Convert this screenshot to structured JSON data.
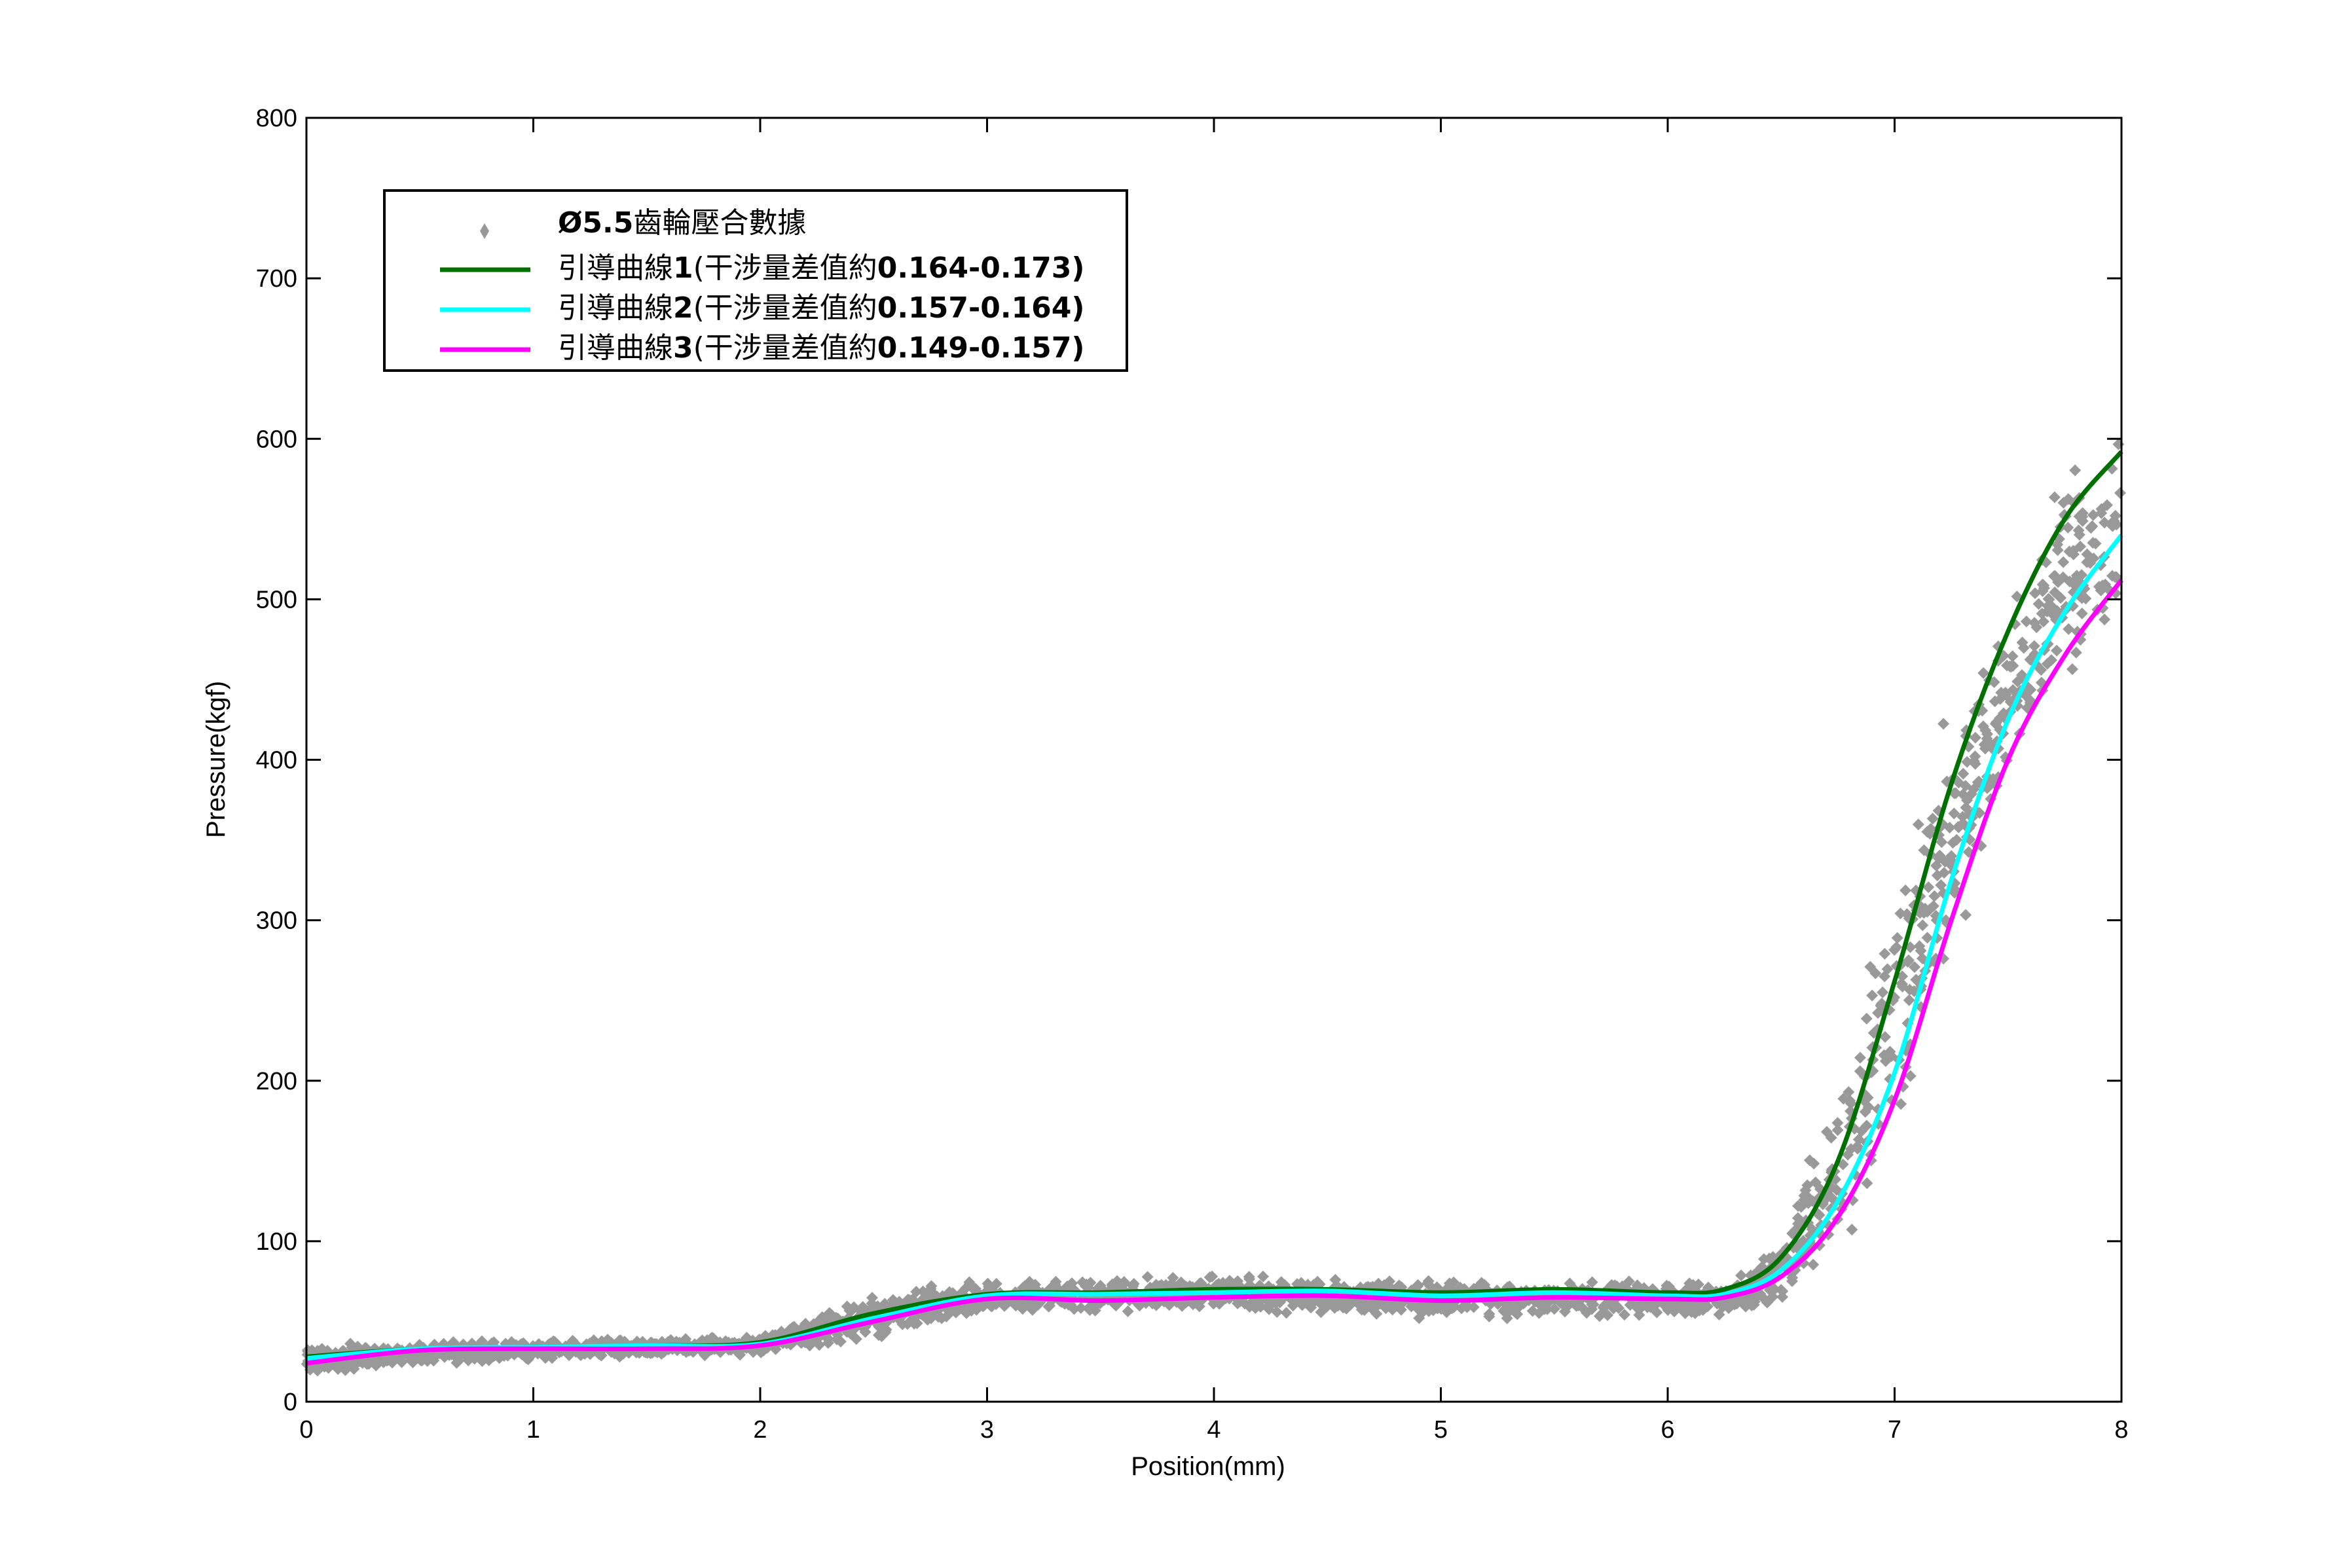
{
  "chart_data": {
    "type": "scatter",
    "xlabel": "Position(mm)",
    "ylabel": "Pressure(kgf)",
    "xlim": [
      0,
      8
    ],
    "ylim": [
      0,
      800
    ],
    "xticks": [
      "0",
      "1",
      "2",
      "3",
      "4",
      "5",
      "6",
      "7",
      "8"
    ],
    "yticks": [
      "0",
      "100",
      "200",
      "300",
      "400",
      "500",
      "600",
      "700",
      "800"
    ],
    "grid": false,
    "legend_position": "top-left",
    "scatter": {
      "name_bold": "Ø5.5",
      "name_rest": "齒輪壓合數據",
      "color": "#999999",
      "band": {
        "x": [
          0,
          1,
          2,
          2.5,
          3,
          4,
          5,
          6,
          6.3,
          6.5,
          6.75,
          7,
          7.25,
          7.5,
          7.75,
          8
        ],
        "lower": [
          15,
          25,
          28,
          35,
          52,
          55,
          50,
          50,
          52,
          55,
          85,
          150,
          260,
          360,
          430,
          460
        ],
        "upper": [
          38,
          40,
          42,
          70,
          78,
          80,
          78,
          78,
          80,
          110,
          210,
          340,
          450,
          520,
          590,
          630
        ]
      }
    },
    "series": [
      {
        "label_prefix": "引導曲線",
        "label_num": "1",
        "label_mid": "(干涉量差值約",
        "label_range": "0.164-0.173)",
        "color": "#007000",
        "x": [
          0,
          0.5,
          1,
          1.5,
          2,
          2.5,
          3,
          3.5,
          4,
          4.5,
          5,
          5.5,
          6,
          6.25,
          6.5,
          6.75,
          7,
          7.25,
          7.5,
          7.75,
          8
        ],
        "y": [
          28,
          33,
          34,
          35,
          37,
          55,
          67,
          68,
          70,
          70,
          68,
          70,
          68,
          70,
          90,
          150,
          262,
          385,
          480,
          550,
          592
        ]
      },
      {
        "label_prefix": "引導曲線",
        "label_num": "2",
        "label_mid": "(干涉量差值約",
        "label_range": "0.157-0.164)",
        "color": "#00FFFF",
        "x": [
          0,
          0.5,
          1,
          1.5,
          2,
          2.5,
          3,
          3.5,
          4,
          4.5,
          5,
          5.5,
          6,
          6.25,
          6.5,
          6.75,
          7,
          7.25,
          7.5,
          7.75,
          8
        ],
        "y": [
          27,
          33,
          34,
          35,
          36,
          52,
          66,
          67,
          68,
          69,
          66,
          68,
          66,
          67,
          82,
          125,
          205,
          325,
          425,
          492,
          540
        ]
      },
      {
        "label_prefix": "引導曲線",
        "label_num": "3",
        "label_mid": "(干涉量差值約",
        "label_range": "0.149-0.157)",
        "color": "#FF00FF",
        "x": [
          0,
          0.5,
          1,
          1.5,
          2,
          2.5,
          3,
          3.5,
          4,
          4.5,
          5,
          5.5,
          6,
          6.25,
          6.5,
          6.75,
          7,
          7.25,
          7.5,
          7.75,
          8
        ],
        "y": [
          24,
          32,
          33,
          33,
          35,
          50,
          64,
          63,
          65,
          66,
          63,
          65,
          64,
          65,
          78,
          115,
          188,
          300,
          400,
          465,
          512
        ]
      }
    ]
  }
}
